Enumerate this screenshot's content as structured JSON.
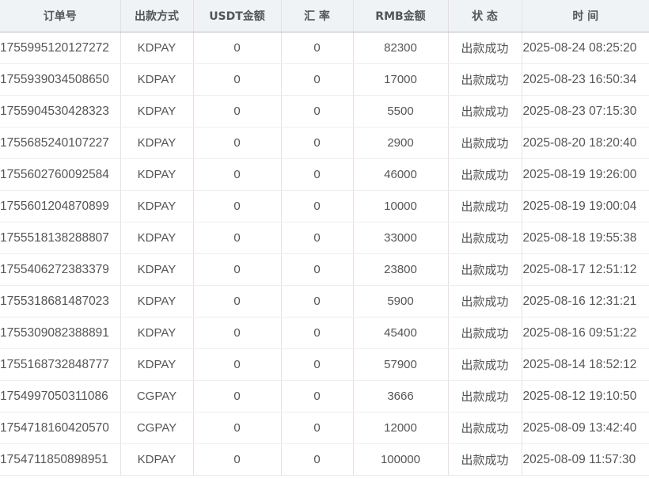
{
  "table": {
    "headers": [
      "订单号",
      "出款方式",
      "USDT金额",
      "汇 率",
      "RMB金额",
      "状 态",
      "时 间"
    ],
    "rows": [
      [
        "1755995120127272",
        "KDPAY",
        "0",
        "0",
        "82300",
        "出款成功",
        "2025-08-24 08:25:20"
      ],
      [
        "1755939034508650",
        "KDPAY",
        "0",
        "0",
        "17000",
        "出款成功",
        "2025-08-23 16:50:34"
      ],
      [
        "1755904530428323",
        "KDPAY",
        "0",
        "0",
        "5500",
        "出款成功",
        "2025-08-23 07:15:30"
      ],
      [
        "1755685240107227",
        "KDPAY",
        "0",
        "0",
        "2900",
        "出款成功",
        "2025-08-20 18:20:40"
      ],
      [
        "1755602760092584",
        "KDPAY",
        "0",
        "0",
        "46000",
        "出款成功",
        "2025-08-19 19:26:00"
      ],
      [
        "1755601204870899",
        "KDPAY",
        "0",
        "0",
        "10000",
        "出款成功",
        "2025-08-19 19:00:04"
      ],
      [
        "1755518138288807",
        "KDPAY",
        "0",
        "0",
        "33000",
        "出款成功",
        "2025-08-18 19:55:38"
      ],
      [
        "1755406272383379",
        "KDPAY",
        "0",
        "0",
        "23800",
        "出款成功",
        "2025-08-17 12:51:12"
      ],
      [
        "1755318681487023",
        "KDPAY",
        "0",
        "0",
        "5900",
        "出款成功",
        "2025-08-16 12:31:21"
      ],
      [
        "1755309082388891",
        "KDPAY",
        "0",
        "0",
        "45400",
        "出款成功",
        "2025-08-16 09:51:22"
      ],
      [
        "1755168732848777",
        "KDPAY",
        "0",
        "0",
        "57900",
        "出款成功",
        "2025-08-14 18:52:12"
      ],
      [
        "1754997050311086",
        "CGPAY",
        "0",
        "0",
        "3666",
        "出款成功",
        "2025-08-12 19:10:50"
      ],
      [
        "1754718160420570",
        "CGPAY",
        "0",
        "0",
        "12000",
        "出款成功",
        "2025-08-09 13:42:40"
      ],
      [
        "1754711850898951",
        "KDPAY",
        "0",
        "0",
        "100000",
        "出款成功",
        "2025-08-09 11:57:30"
      ]
    ]
  }
}
